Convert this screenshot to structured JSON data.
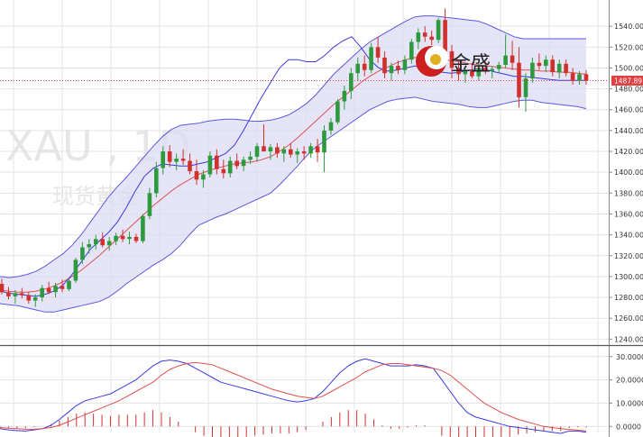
{
  "watermark": {
    "symbol": "XAU , 1D",
    "name": "现货黄金"
  },
  "brand": {
    "name": "金盛",
    "colors": {
      "red": "#cc1f1f",
      "gold": "#e0b020"
    }
  },
  "colors": {
    "up": "#2e9a3e",
    "down": "#d0312d",
    "band_fill": "#dcdcf4",
    "band_line": "#5a5ae0",
    "middle_line": "#e05050",
    "ma_short": "#3a3ae0",
    "last_price_bg": "#e04040",
    "grid": "#e4e4e4"
  },
  "chart_data": [
    {
      "type": "candlestick",
      "title": "XAU , 1D",
      "subtitle": "现货黄金",
      "ylim": [
        1236,
        1560
      ],
      "y_ticks": [
        1240,
        1260,
        1280,
        1300,
        1320,
        1340,
        1360,
        1380,
        1400,
        1420,
        1440,
        1460,
        1480,
        1500,
        1520,
        1540
      ],
      "y_tick_labels": [
        "1240.00",
        "1260.00",
        "1280.00",
        "1300.00",
        "1320.00",
        "1340.00",
        "1360.00",
        "1380.00",
        "1400.00",
        "1420.00",
        "1440.00",
        "1460.00",
        "1480.00",
        "1500.00",
        "1520.00",
        "1540.00"
      ],
      "last_price": 1487.89,
      "last_price_label": "1487.89",
      "ohlc": [
        [
          1293,
          1298,
          1283,
          1285
        ],
        [
          1285,
          1290,
          1278,
          1281
        ],
        [
          1281,
          1287,
          1274,
          1284
        ],
        [
          1284,
          1289,
          1279,
          1282
        ],
        [
          1282,
          1285,
          1274,
          1277
        ],
        [
          1277,
          1283,
          1271,
          1280
        ],
        [
          1280,
          1292,
          1276,
          1289
        ],
        [
          1289,
          1295,
          1283,
          1285
        ],
        [
          1285,
          1294,
          1280,
          1291
        ],
        [
          1291,
          1297,
          1285,
          1288
        ],
        [
          1288,
          1298,
          1286,
          1296
        ],
        [
          1296,
          1318,
          1294,
          1316
        ],
        [
          1316,
          1333,
          1312,
          1328
        ],
        [
          1328,
          1336,
          1322,
          1331
        ],
        [
          1331,
          1340,
          1326,
          1336
        ],
        [
          1336,
          1342,
          1328,
          1330
        ],
        [
          1330,
          1338,
          1325,
          1334
        ],
        [
          1334,
          1342,
          1330,
          1339
        ],
        [
          1339,
          1345,
          1333,
          1336
        ],
        [
          1336,
          1343,
          1331,
          1338
        ],
        [
          1338,
          1341,
          1332,
          1334
        ],
        [
          1334,
          1360,
          1332,
          1358
        ],
        [
          1358,
          1385,
          1355,
          1380
        ],
        [
          1380,
          1410,
          1376,
          1404
        ],
        [
          1404,
          1425,
          1398,
          1420
        ],
        [
          1420,
          1426,
          1405,
          1410
        ],
        [
          1410,
          1418,
          1402,
          1413
        ],
        [
          1413,
          1422,
          1407,
          1411
        ],
        [
          1411,
          1418,
          1398,
          1401
        ],
        [
          1401,
          1412,
          1388,
          1393
        ],
        [
          1393,
          1402,
          1385,
          1398
        ],
        [
          1398,
          1420,
          1395,
          1416
        ],
        [
          1416,
          1422,
          1398,
          1403
        ],
        [
          1403,
          1412,
          1394,
          1399
        ],
        [
          1399,
          1415,
          1395,
          1411
        ],
        [
          1411,
          1418,
          1403,
          1406
        ],
        [
          1406,
          1415,
          1401,
          1412
        ],
        [
          1412,
          1420,
          1408,
          1415
        ],
        [
          1415,
          1428,
          1410,
          1425
        ],
        [
          1425,
          1446,
          1420,
          1420
        ],
        [
          1420,
          1427,
          1412,
          1424
        ],
        [
          1424,
          1428,
          1414,
          1418
        ],
        [
          1418,
          1425,
          1410,
          1422
        ],
        [
          1422,
          1428,
          1414,
          1417
        ],
        [
          1417,
          1423,
          1409,
          1420
        ],
        [
          1420,
          1425,
          1412,
          1418
        ],
        [
          1418,
          1428,
          1414,
          1425
        ],
        [
          1425,
          1432,
          1410,
          1419
        ],
        [
          1419,
          1445,
          1400,
          1440
        ],
        [
          1440,
          1452,
          1436,
          1448
        ],
        [
          1448,
          1470,
          1446,
          1468
        ],
        [
          1468,
          1483,
          1460,
          1478
        ],
        [
          1478,
          1500,
          1470,
          1495
        ],
        [
          1495,
          1510,
          1488,
          1504
        ],
        [
          1504,
          1512,
          1492,
          1498
        ],
        [
          1498,
          1524,
          1495,
          1520
        ],
        [
          1520,
          1530,
          1505,
          1510
        ],
        [
          1510,
          1516,
          1490,
          1495
        ],
        [
          1495,
          1505,
          1488,
          1502
        ],
        [
          1502,
          1507,
          1494,
          1498
        ],
        [
          1498,
          1512,
          1494,
          1508
        ],
        [
          1508,
          1528,
          1504,
          1525
        ],
        [
          1525,
          1538,
          1518,
          1534
        ],
        [
          1534,
          1540,
          1525,
          1530
        ],
        [
          1530,
          1536,
          1522,
          1527
        ],
        [
          1527,
          1548,
          1524,
          1546
        ],
        [
          1546,
          1557,
          1508,
          1516
        ],
        [
          1516,
          1522,
          1490,
          1500
        ],
        [
          1500,
          1506,
          1488,
          1494
        ],
        [
          1494,
          1502,
          1486,
          1498
        ],
        [
          1498,
          1505,
          1490,
          1492
        ],
        [
          1492,
          1504,
          1488,
          1500
        ],
        [
          1500,
          1506,
          1494,
          1497
        ],
        [
          1497,
          1502,
          1490,
          1499
        ],
        [
          1499,
          1506,
          1495,
          1503
        ],
        [
          1503,
          1532,
          1500,
          1512
        ],
        [
          1512,
          1526,
          1498,
          1505
        ],
        [
          1505,
          1520,
          1462,
          1472
        ],
        [
          1472,
          1495,
          1458,
          1490
        ],
        [
          1490,
          1510,
          1486,
          1505
        ],
        [
          1505,
          1514,
          1498,
          1502
        ],
        [
          1502,
          1512,
          1496,
          1508
        ],
        [
          1508,
          1512,
          1492,
          1496
        ],
        [
          1496,
          1508,
          1490,
          1504
        ],
        [
          1504,
          1508,
          1492,
          1495
        ],
        [
          1495,
          1500,
          1484,
          1488
        ],
        [
          1488,
          1497,
          1484,
          1494
        ],
        [
          1494,
          1498,
          1484,
          1487.89
        ]
      ],
      "bollinger": {
        "upper": [
          1300,
          1299,
          1300,
          1302,
          1305,
          1310,
          1316,
          1322,
          1330,
          1340,
          1352,
          1364,
          1376,
          1386,
          1395,
          1405,
          1415,
          1425,
          1434,
          1441,
          1445,
          1446,
          1447,
          1449,
          1450,
          1451,
          1451,
          1450,
          1449,
          1449,
          1450,
          1452,
          1455,
          1460,
          1466,
          1474,
          1484,
          1494,
          1502,
          1510,
          1518,
          1525,
          1530,
          1535,
          1540,
          1545,
          1549,
          1550,
          1550,
          1549,
          1548,
          1547,
          1546,
          1545,
          1542,
          1538,
          1534,
          1530,
          1528,
          1528,
          1528,
          1528,
          1528,
          1528,
          1528,
          1528
        ],
        "middle": [
          1287,
          1286,
          1285,
          1285,
          1286,
          1288,
          1291,
          1295,
          1300,
          1306,
          1313,
          1320,
          1328,
          1336,
          1344,
          1352,
          1360,
          1368,
          1375,
          1382,
          1388,
          1393,
          1398,
          1401,
          1404,
          1406,
          1408,
          1409,
          1410,
          1412,
          1415,
          1420,
          1426,
          1433,
          1441,
          1449,
          1457,
          1465,
          1472,
          1479,
          1486,
          1492,
          1497,
          1501,
          1505,
          1508,
          1510,
          1510,
          1509,
          1508,
          1507,
          1506,
          1504,
          1503,
          1502,
          1501,
          1500,
          1499,
          1498,
          1498,
          1497,
          1497,
          1496,
          1496,
          1495,
          1494
        ],
        "lower": [
          1274,
          1273,
          1272,
          1270,
          1268,
          1266,
          1266,
          1268,
          1270,
          1272,
          1274,
          1276,
          1280,
          1286,
          1293,
          1299,
          1305,
          1311,
          1316,
          1322,
          1330,
          1340,
          1349,
          1353,
          1357,
          1360,
          1364,
          1368,
          1372,
          1376,
          1380,
          1388,
          1397,
          1406,
          1416,
          1424,
          1430,
          1436,
          1442,
          1448,
          1454,
          1460,
          1464,
          1468,
          1470,
          1471,
          1472,
          1470,
          1468,
          1467,
          1466,
          1465,
          1463,
          1462,
          1462,
          1464,
          1466,
          1468,
          1469,
          1469,
          1467,
          1466,
          1465,
          1464,
          1463,
          1461
        ]
      },
      "ma_short": [
        1286,
        1284,
        1283,
        1282,
        1281,
        1283,
        1286,
        1292,
        1302,
        1314,
        1326,
        1334,
        1342,
        1352,
        1366,
        1382,
        1396,
        1404,
        1408,
        1407,
        1406,
        1406,
        1408,
        1410,
        1414,
        1418,
        1426,
        1440,
        1456,
        1472,
        1486,
        1500,
        1508,
        1508,
        1506,
        1506,
        1512,
        1520,
        1526,
        1530,
        1520,
        1508,
        1500,
        1497,
        1498,
        1500,
        1502,
        1500,
        1498,
        1496,
        1495,
        1496,
        1498,
        1499,
        1498,
        1496,
        1494,
        1492,
        1492,
        1491,
        1490,
        1489,
        1488,
        1488,
        1488,
        1488
      ]
    },
    {
      "type": "macd",
      "ylim": [
        -3,
        33
      ],
      "y_ticks": [
        0,
        10,
        20,
        30
      ],
      "y_tick_labels": [
        "0.0000",
        "10.0000",
        "20.0000",
        "30.0000"
      ],
      "macd": [
        -1.0,
        -1.5,
        -1.8,
        -2.0,
        -1.5,
        -1.0,
        0.5,
        3,
        6,
        9,
        11,
        12,
        13,
        14,
        16,
        18,
        20,
        23,
        26,
        28,
        28.5,
        28,
        27,
        25,
        23,
        21,
        19,
        18,
        17,
        16,
        15,
        14,
        13,
        12,
        11,
        10.5,
        11,
        12,
        15,
        19,
        23,
        26,
        28,
        29,
        28,
        27,
        26,
        26,
        26,
        26.5,
        26,
        25,
        20,
        15,
        10,
        6,
        4,
        3,
        2,
        1,
        0,
        -0.5,
        -1,
        -1.5,
        -2,
        -2.5,
        -3,
        -2,
        -2,
        -2.5
      ],
      "signal": [
        -0.5,
        -0.8,
        -1.0,
        -1.2,
        -1.2,
        -1.0,
        -0.5,
        0.5,
        2,
        3.5,
        5,
        6.5,
        8,
        9.5,
        11,
        13,
        15,
        17,
        19,
        22,
        24.5,
        26,
        27,
        27.5,
        27,
        26.5,
        25,
        23.5,
        22,
        20.5,
        19,
        17.5,
        16,
        15,
        14,
        13,
        12.5,
        12,
        13,
        15,
        17,
        19,
        21,
        23.5,
        25,
        26.5,
        27,
        27,
        26.5,
        26,
        25.5,
        25,
        24,
        22,
        19,
        16,
        13,
        10,
        8,
        6,
        4.5,
        3,
        2,
        1,
        0,
        -0.5,
        -1,
        -1.3,
        -1.6,
        -2
      ],
      "histogram": [
        -0.5,
        -0.7,
        -0.8,
        -0.8,
        -0.3,
        0,
        1.0,
        2.5,
        4,
        5.5,
        6,
        5.5,
        5,
        4.5,
        5,
        5,
        5,
        6,
        7,
        6,
        4,
        2,
        0,
        -2.5,
        -4,
        -5.5,
        -6,
        -5.5,
        -5,
        -4.5,
        -4,
        -3.5,
        -3,
        -3,
        -3,
        -2.5,
        -1.5,
        0,
        2,
        4,
        6,
        7,
        7,
        5.5,
        3,
        0.5,
        -1,
        -1,
        -0.5,
        0.5,
        0.5,
        0,
        -4,
        -7,
        -9,
        -10,
        -9,
        -7,
        -6,
        -5,
        -4.5,
        -3.5,
        -3,
        -2.5,
        -2,
        -2,
        -2,
        -0.7,
        -0.4,
        -0.5
      ]
    }
  ]
}
